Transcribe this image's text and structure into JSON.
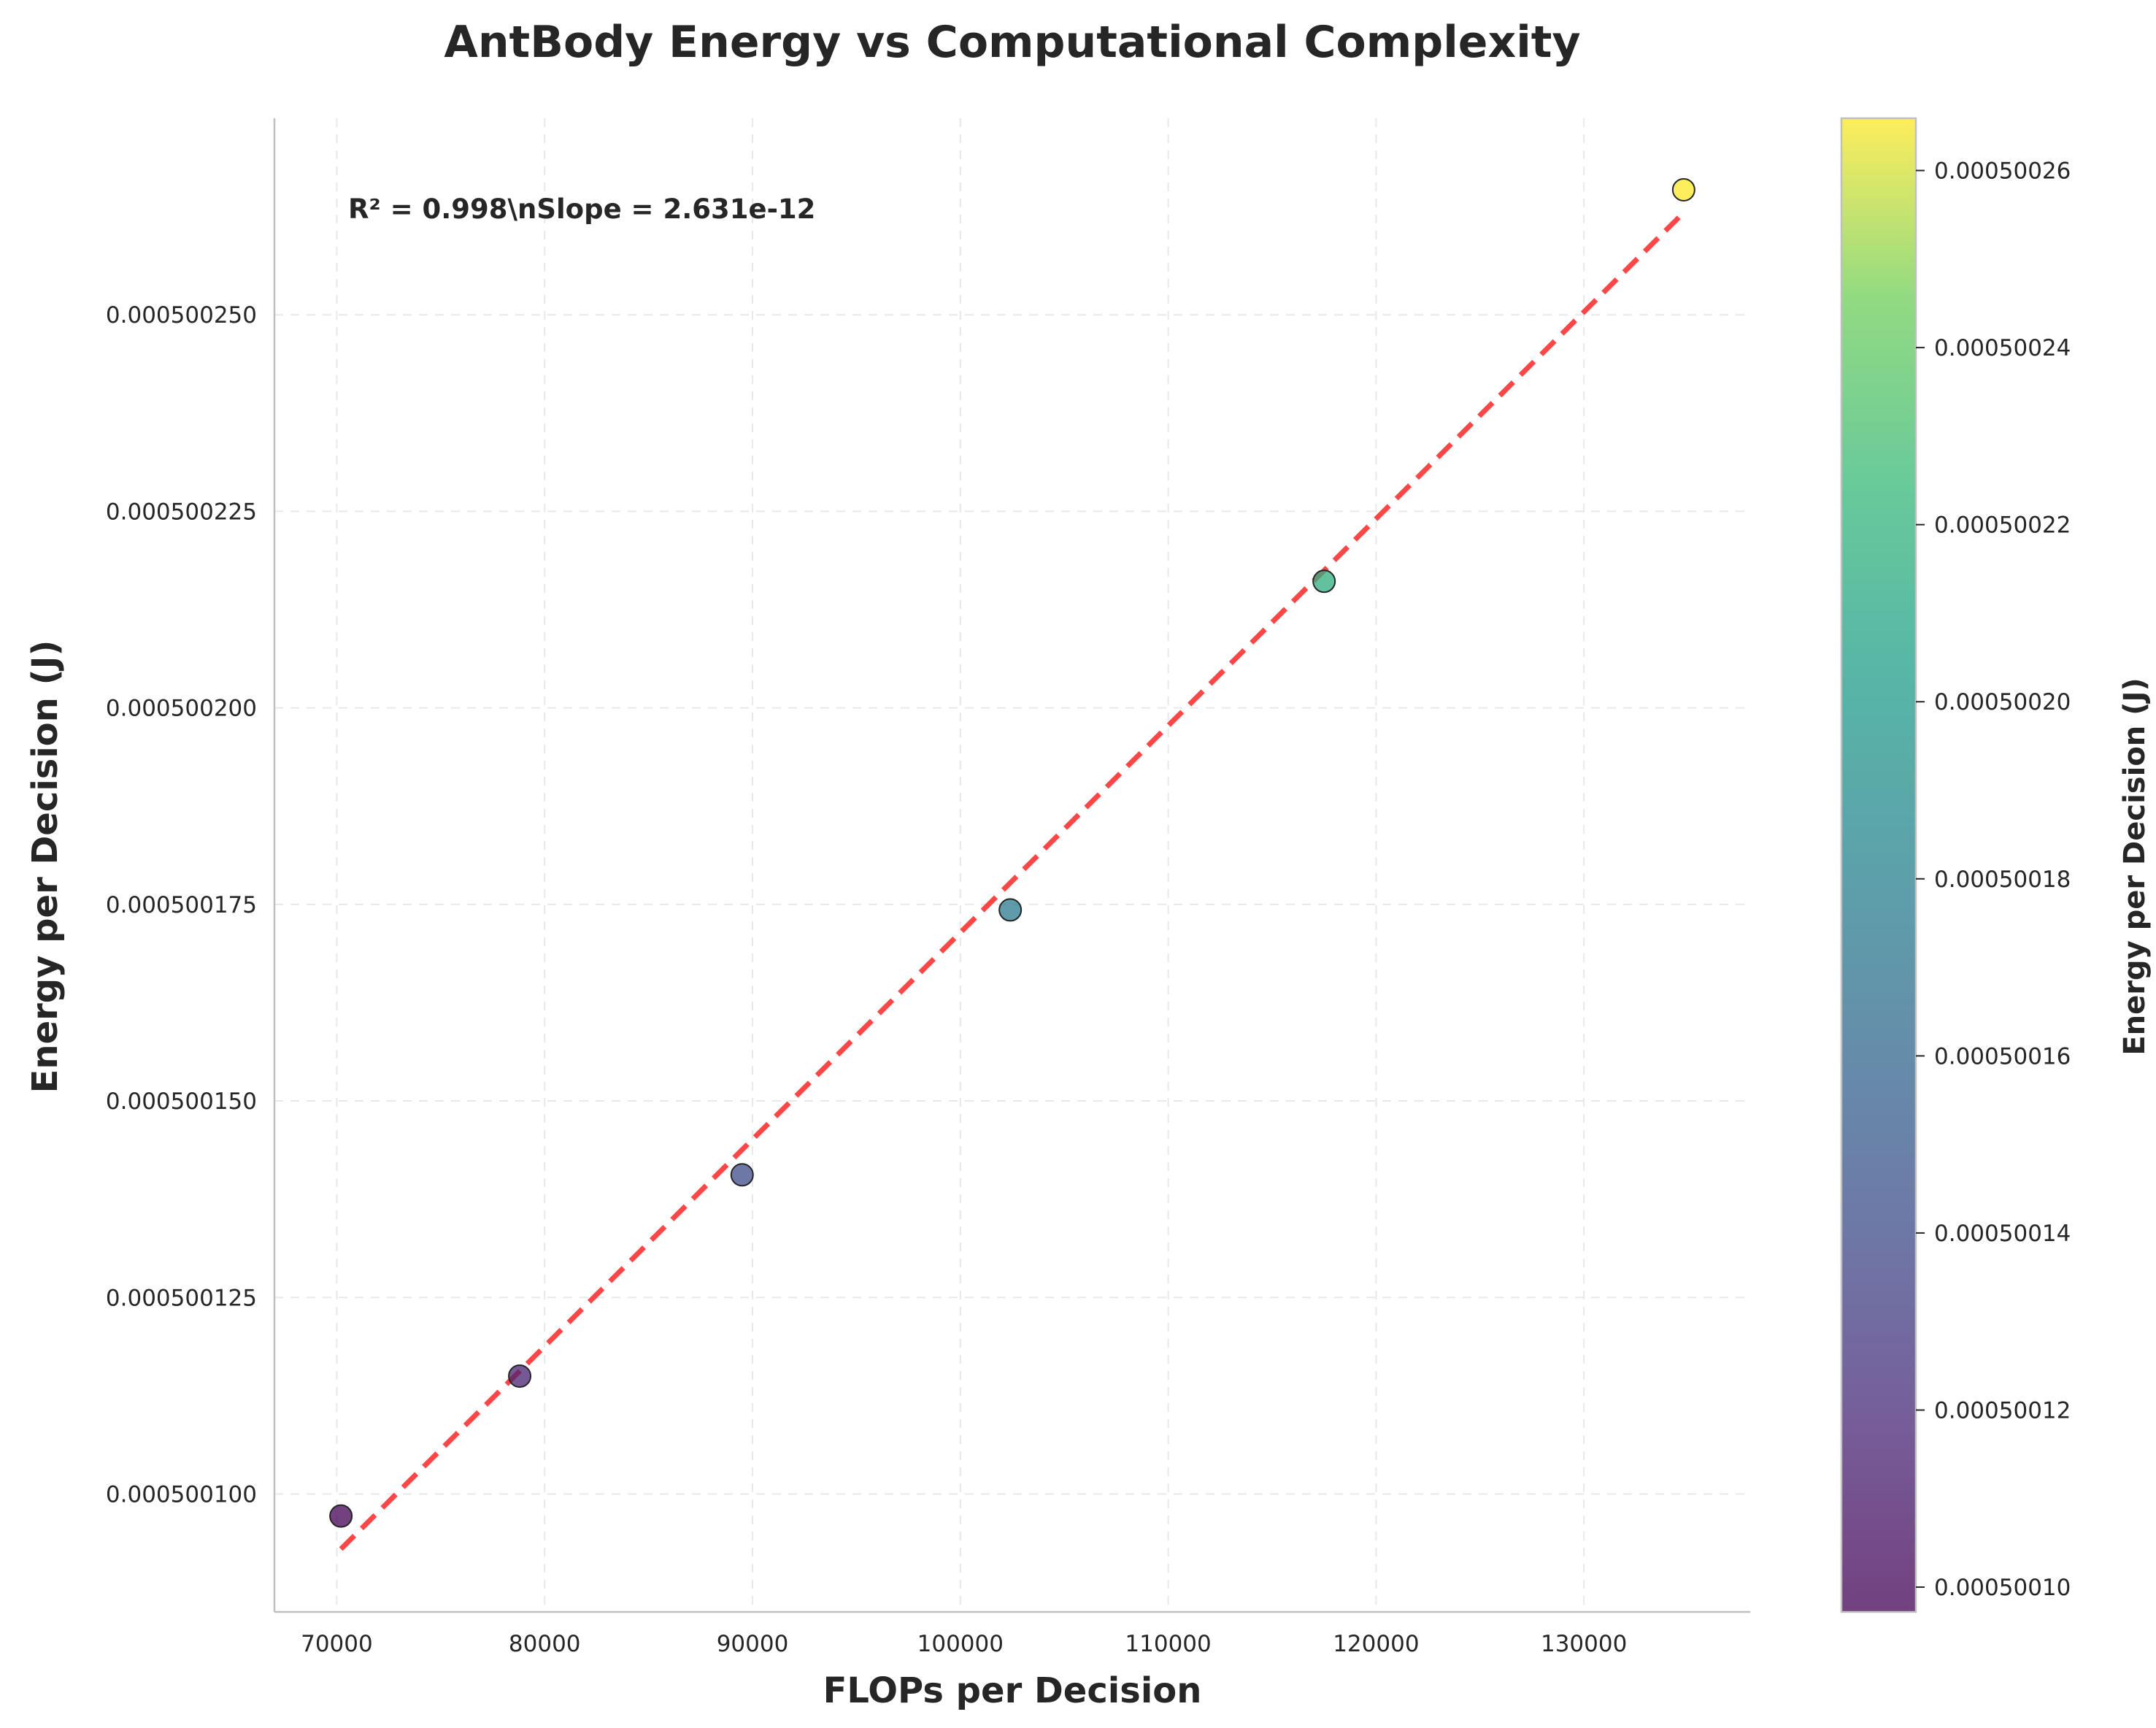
{
  "chart_data": {
    "type": "scatter",
    "title": "AntBody Energy vs Computational Complexity",
    "xlabel": "FLOPs per Decision",
    "ylabel": "Energy per Decision (J)",
    "xlim": [
      67000,
      138000
    ],
    "ylim": [
      0.000500085,
      0.000500275
    ],
    "x_ticks": [
      70000,
      80000,
      90000,
      100000,
      110000,
      120000,
      130000
    ],
    "x_tick_labels": [
      "70000",
      "80000",
      "90000",
      "100000",
      "110000",
      "120000",
      "130000"
    ],
    "y_ticks": [
      0.0005001,
      0.000500125,
      0.00050015,
      0.000500175,
      0.0005002,
      0.000500225,
      0.00050025
    ],
    "y_tick_labels": [
      "0.000500100",
      "0.000500125",
      "0.000500150",
      "0.000500175",
      "0.000500200",
      "0.000500225",
      "0.000500250"
    ],
    "grid": true,
    "points": [
      {
        "x": 70200,
        "y": 0.0005000972
      },
      {
        "x": 78800,
        "y": 0.000500115
      },
      {
        "x": 89500,
        "y": 0.0005001406
      },
      {
        "x": 102400,
        "y": 0.0005001743
      },
      {
        "x": 117500,
        "y": 0.0005002161
      },
      {
        "x": 134800,
        "y": 0.0005002659
      }
    ],
    "fit_line": {
      "x": [
        70200,
        134800
      ],
      "y": [
        0.000500093,
        0.000500263
      ],
      "color": "#ff3333",
      "style": "dashed"
    },
    "annotation": "R² = 0.998\\nSlope = 2.631e-12",
    "colorbar": {
      "label": "Energy per Decision (J)",
      "colormap": "viridis",
      "range": [
        0.0005000972,
        0.0005002659
      ],
      "ticks": [
        0.0005001,
        0.00050012,
        0.00050014,
        0.00050016,
        0.00050018,
        0.0005002,
        0.00050022,
        0.00050024,
        0.00050026
      ],
      "tick_labels": [
        "0.00050010",
        "0.00050012",
        "0.00050014",
        "0.00050016",
        "0.00050018",
        "0.00050020",
        "0.00050022",
        "0.00050024",
        "0.00050026"
      ]
    }
  }
}
